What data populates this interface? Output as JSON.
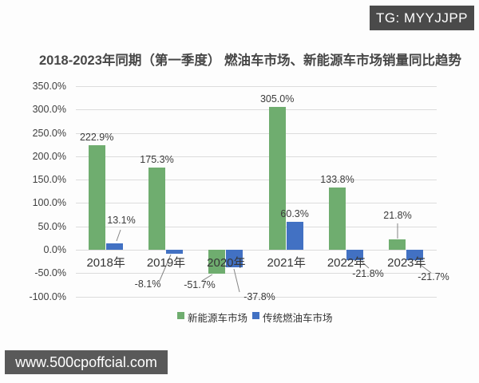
{
  "badges": {
    "top_right": "TG: MYYJJPP",
    "bottom_left": "www.500cpoffcial.com",
    "top_right_bg": "#4a4a4a",
    "bottom_left_bg": "#595959"
  },
  "chart_data": {
    "type": "bar",
    "title": "2018-2023年同期（第一季度） 燃油车市场、新能源车市场销量同比趋势",
    "categories": [
      "2018年",
      "2019年",
      "2020年",
      "2021年",
      "2022年",
      "2023年"
    ],
    "series": [
      {
        "name": "新能源车市场",
        "color": "#6FAD6F",
        "values": [
          222.9,
          175.3,
          -51.7,
          305.0,
          133.8,
          21.8
        ]
      },
      {
        "name": "传统燃油车市场",
        "color": "#4271C3",
        "values": [
          13.1,
          -8.1,
          -37.8,
          60.3,
          -21.8,
          -21.7
        ]
      }
    ],
    "yticks": [
      "350.0%",
      "300.0%",
      "250.0%",
      "200.0%",
      "150.0%",
      "100.0%",
      "50.0%",
      "0.0%",
      "-50.0%",
      "-100.0%"
    ],
    "ylim": [
      -100,
      350
    ],
    "ytick_step": 50,
    "value_suffix": "%",
    "grid": true,
    "legend_position": "bottom",
    "gridline_color": "#dcdcdc",
    "leader_line_color": "#858585"
  }
}
